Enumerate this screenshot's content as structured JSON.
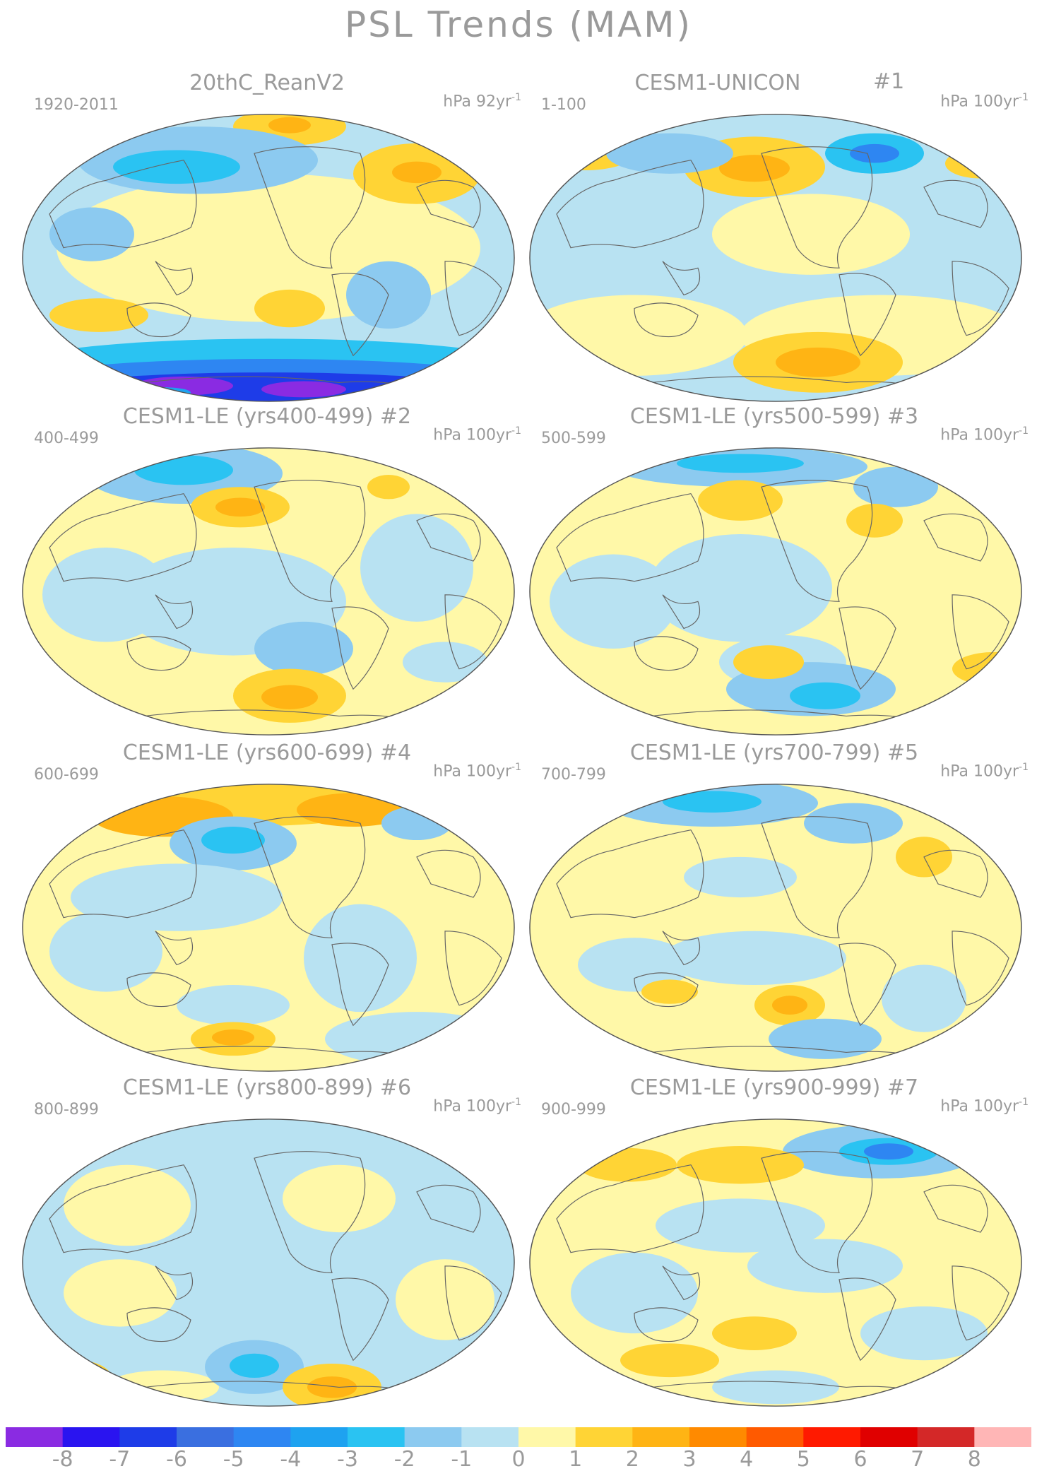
{
  "title": "PSL Trends (MAM)",
  "panels": [
    {
      "title": "20thC_ReanV2",
      "number": "",
      "years": "1920-2011",
      "units": "hPa 92yr",
      "units_exp": "-1"
    },
    {
      "title": "CESM1-UNICON",
      "number": "#1",
      "years": "1-100",
      "units": "hPa 100yr",
      "units_exp": "-1"
    },
    {
      "title": "CESM1-LE (yrs400-499) #2",
      "number": "",
      "years": "400-499",
      "units": "hPa 100yr",
      "units_exp": "-1"
    },
    {
      "title": "CESM1-LE (yrs500-599) #3",
      "number": "",
      "years": "500-599",
      "units": "hPa 100yr",
      "units_exp": "-1"
    },
    {
      "title": "CESM1-LE (yrs600-699) #4",
      "number": "",
      "years": "600-699",
      "units": "hPa 100yr",
      "units_exp": "-1"
    },
    {
      "title": "CESM1-LE (yrs700-799) #5",
      "number": "",
      "years": "700-799",
      "units": "hPa 100yr",
      "units_exp": "-1"
    },
    {
      "title": "CESM1-LE (yrs800-899) #6",
      "number": "",
      "years": "800-899",
      "units": "hPa 100yr",
      "units_exp": "-1"
    },
    {
      "title": "CESM1-LE (yrs900-999) #7",
      "number": "",
      "years": "900-999",
      "units": "hPa 100yr",
      "units_exp": "-1"
    }
  ],
  "colorbar": {
    "labels": [
      "-8",
      "-7",
      "-6",
      "-5",
      "-4",
      "-3",
      "-2",
      "-1",
      "0",
      "1",
      "2",
      "3",
      "4",
      "5",
      "6",
      "7",
      "8"
    ],
    "colors": [
      "#8a2be2",
      "#2a14f0",
      "#1e3ce8",
      "#3a6fe0",
      "#2e86f2",
      "#1ea2f0",
      "#2ac3f2",
      "#8ccaf0",
      "#b8e2f2",
      "#fff8a8",
      "#ffd435",
      "#ffb414",
      "#ff8a00",
      "#ff5a00",
      "#ff1a00",
      "#e00000",
      "#d42828",
      "#ffb6b6"
    ]
  }
}
